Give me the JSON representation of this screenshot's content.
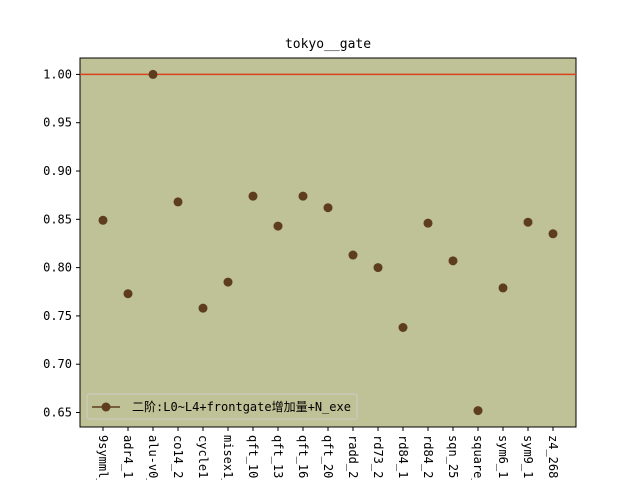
{
  "chart_data": {
    "type": "scatter",
    "title": "tokyo__gate",
    "xlabel": "",
    "ylabel": "",
    "categories": [
      "9symml_",
      "adr4_1",
      "alu-v0_",
      "co14_2",
      "cycle1",
      "misex1_",
      "qft_10",
      "qft_13",
      "qft_16",
      "qft_20",
      "radd_2",
      "rd73_2",
      "rd84_1",
      "rd84_2",
      "sqn_25",
      "square_",
      "sym6_1",
      "sym9_1",
      "z4_268"
    ],
    "series": [
      {
        "name": "二阶:L0~L4+frontgate增加量+N_exe",
        "values": [
          0.849,
          0.773,
          1.0,
          0.868,
          0.758,
          0.785,
          0.874,
          0.843,
          0.874,
          0.862,
          0.813,
          0.8,
          0.738,
          0.846,
          0.807,
          0.652,
          0.779,
          0.847,
          0.835
        ],
        "color": "#5e3c1e"
      }
    ],
    "reference_line": {
      "value": 1.0,
      "color": "#d9441c"
    },
    "ylim": [
      0.635,
      1.017
    ],
    "yticks": [
      "0.65",
      "0.70",
      "0.75",
      "0.80",
      "0.85",
      "0.90",
      "0.95",
      "1.00"
    ],
    "plot_background": "#bfc196",
    "grid": false,
    "legend_position": "lower-left"
  }
}
